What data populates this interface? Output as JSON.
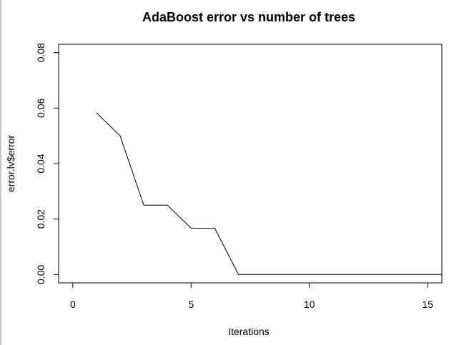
{
  "chart_data": {
    "type": "line",
    "title": "AdaBoost error vs number of trees",
    "xlabel": "Iterations",
    "ylabel": "error.lv$error",
    "xlim": [
      -0.6,
      15.6
    ],
    "ylim": [
      -0.003,
      0.083
    ],
    "x_ticks": [
      "0",
      "5",
      "10",
      "15"
    ],
    "y_ticks": [
      "0.00",
      "0.02",
      "0.04",
      "0.06",
      "0.08"
    ],
    "x": [
      1,
      2,
      3,
      4,
      5,
      6,
      7,
      8,
      9,
      10,
      11,
      12,
      13,
      14,
      15,
      16
    ],
    "series": [
      {
        "values": [
          0.0583,
          0.05,
          0.025,
          0.025,
          0.0167,
          0.0167,
          0,
          0,
          0,
          0,
          0,
          0,
          0,
          0,
          0,
          0
        ],
        "color": "#000000"
      }
    ],
    "grid": false,
    "legend": "none"
  }
}
